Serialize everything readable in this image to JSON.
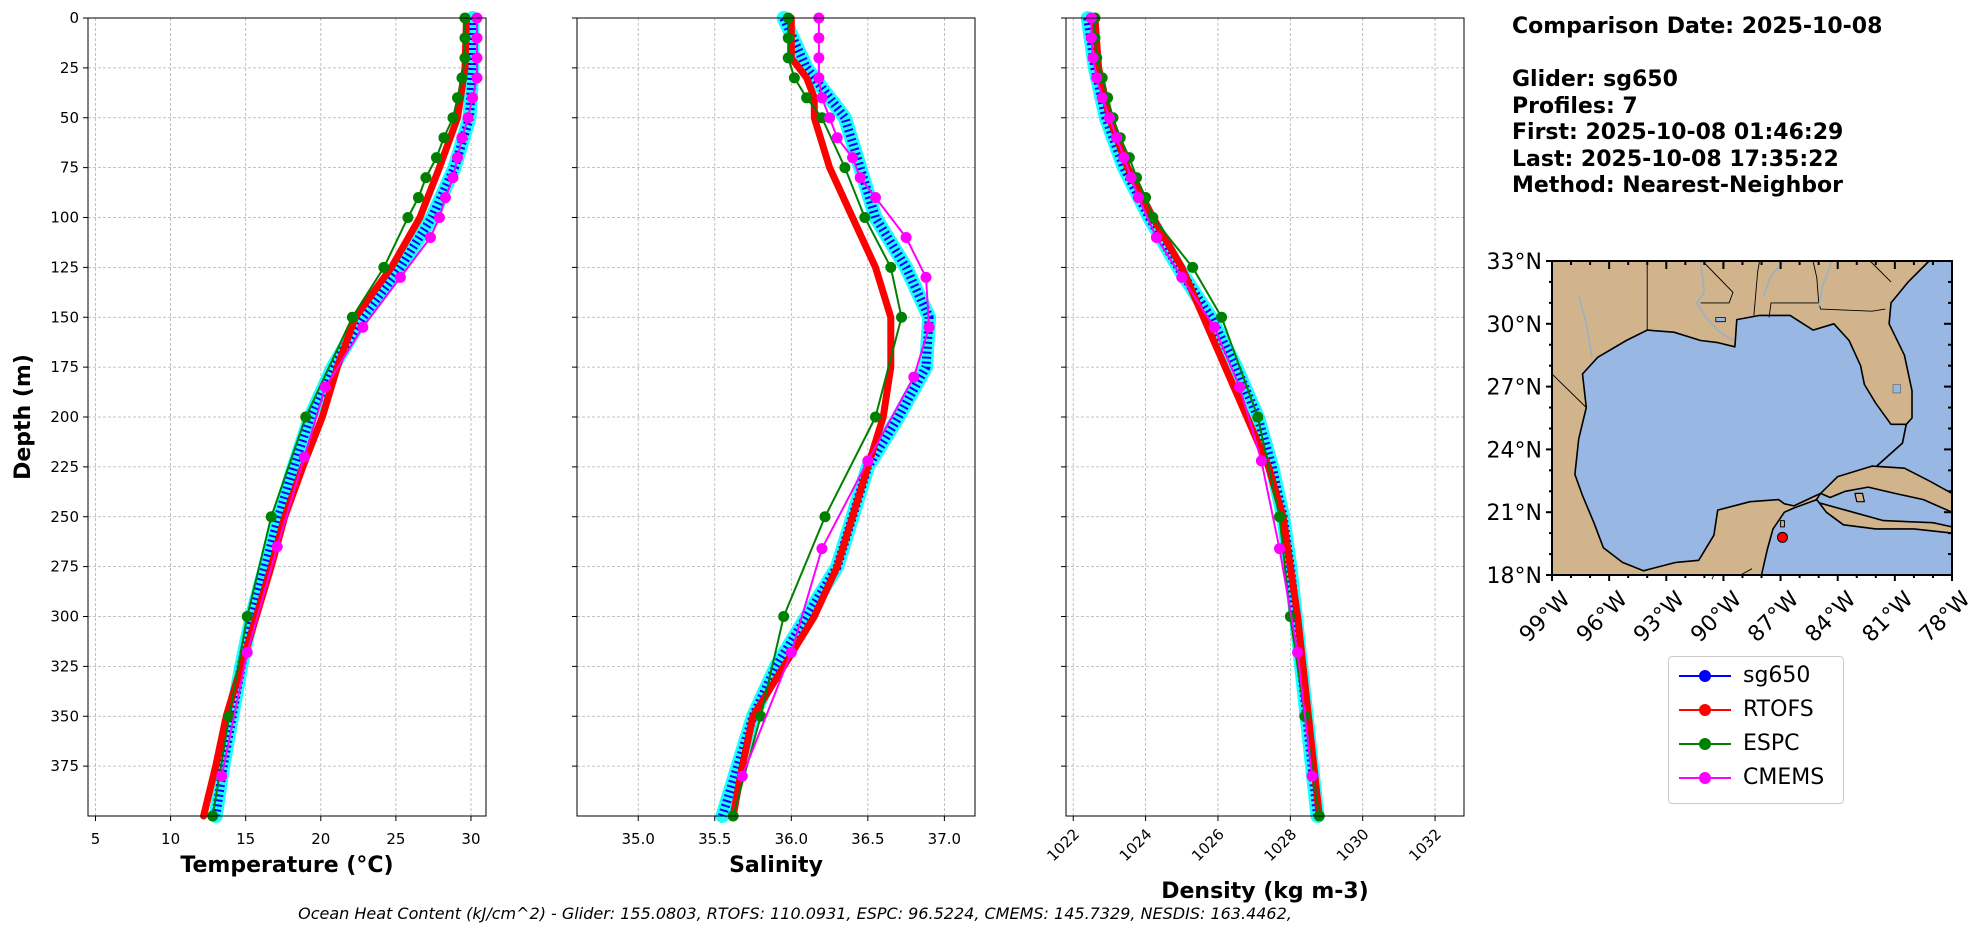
{
  "info": {
    "comparison_date": "Comparison Date: 2025-10-08",
    "glider": "Glider: sg650",
    "profiles": "Profiles: 7",
    "first": "First: 2025-10-08 01:46:29",
    "last": "Last: 2025-10-08 17:35:22",
    "method": "Method: Nearest-Neighbor"
  },
  "footer": "Ocean Heat Content (kJ/cm^2) - Glider: 155.0803,  RTOFS: 110.0931,  ESPC: 96.5224,  CMEMS: 145.7329,  NESDIS: 163.4462,",
  "legend": [
    {
      "name": "sg650",
      "color": "#0000ff"
    },
    {
      "name": "RTOFS",
      "color": "#ff0000"
    },
    {
      "name": "ESPC",
      "color": "#008000"
    },
    {
      "name": "CMEMS",
      "color": "#ff00ff"
    }
  ],
  "map": {
    "lat_ticks": [
      "18°N",
      "21°N",
      "24°N",
      "27°N",
      "30°N",
      "33°N"
    ],
    "lon_ticks": [
      "99°W",
      "96°W",
      "93°W",
      "90°W",
      "87°W",
      "84°W",
      "81°W",
      "78°W"
    ],
    "extent": {
      "lon": [
        -99,
        -78
      ],
      "lat": [
        18,
        33
      ]
    },
    "glider_position": {
      "lon": -86.9,
      "lat": 19.8
    },
    "land_color": "#d2b48c",
    "ocean_color": "#99b7e3"
  },
  "chart_data": [
    {
      "type": "line",
      "xlabel": "Temperature (°C)",
      "ylabel": "Depth (m)",
      "xlim": [
        4.5,
        31
      ],
      "ylim": [
        400,
        0
      ],
      "xticks": [
        5,
        10,
        15,
        20,
        25,
        30
      ],
      "yticks": [
        0,
        25,
        50,
        75,
        100,
        125,
        150,
        175,
        200,
        225,
        250,
        275,
        300,
        325,
        350,
        375
      ],
      "grid": true,
      "series": [
        {
          "name": "sg650",
          "color": "#0000ff",
          "depth": [
            0,
            25,
            50,
            75,
            100,
            125,
            150,
            175,
            200,
            225,
            250,
            275,
            300,
            325,
            350,
            375,
            400
          ],
          "values": [
            30.1,
            30.1,
            29.9,
            28.9,
            27.4,
            25.3,
            22.8,
            20.8,
            19.3,
            18.2,
            17.2,
            16.3,
            15.4,
            14.7,
            14.1,
            13.5,
            13.0
          ]
        },
        {
          "name": "RTOFS",
          "color": "#ff0000",
          "depth": [
            0,
            25,
            50,
            75,
            100,
            125,
            150,
            175,
            200,
            225,
            250,
            275,
            300,
            325,
            350,
            375,
            400
          ],
          "values": [
            29.7,
            29.6,
            29.1,
            27.9,
            26.6,
            24.7,
            22.3,
            21.1,
            20.1,
            18.8,
            17.6,
            16.7,
            15.7,
            14.7,
            13.7,
            13.0,
            12.2
          ]
        },
        {
          "name": "ESPC",
          "color": "#008000",
          "depth": [
            0,
            10,
            20,
            30,
            40,
            50,
            60,
            70,
            80,
            90,
            100,
            125,
            150,
            200,
            250,
            300,
            350,
            400
          ],
          "values": [
            29.6,
            29.6,
            29.6,
            29.4,
            29.1,
            28.8,
            28.2,
            27.7,
            27.0,
            26.5,
            25.8,
            24.2,
            22.1,
            19.0,
            16.7,
            15.1,
            13.9,
            12.8
          ]
        },
        {
          "name": "CMEMS",
          "color": "#ff00ff",
          "depth": [
            0,
            10,
            20,
            30,
            40,
            50,
            60,
            70,
            80,
            90,
            100,
            110,
            130,
            155,
            185,
            220,
            265,
            318,
            380
          ],
          "values": [
            30.4,
            30.4,
            30.4,
            30.4,
            30.1,
            29.8,
            29.4,
            29.1,
            28.8,
            28.3,
            27.9,
            27.3,
            25.3,
            22.8,
            20.3,
            18.9,
            17.1,
            15.1,
            13.4
          ]
        }
      ]
    },
    {
      "type": "line",
      "xlabel": "Salinity",
      "ylabel": "",
      "xlim": [
        34.6,
        37.2
      ],
      "ylim": [
        400,
        0
      ],
      "xticks": [
        35.0,
        35.5,
        36.0,
        36.5,
        37.0
      ],
      "grid": true,
      "series": [
        {
          "name": "sg650",
          "color": "#0000ff",
          "depth": [
            0,
            25,
            50,
            75,
            100,
            125,
            150,
            175,
            200,
            225,
            250,
            275,
            300,
            325,
            350,
            375,
            400
          ],
          "values": [
            35.95,
            36.1,
            36.35,
            36.45,
            36.55,
            36.75,
            36.9,
            36.88,
            36.7,
            36.5,
            36.4,
            36.3,
            36.1,
            35.9,
            35.75,
            35.65,
            35.55
          ]
        },
        {
          "name": "RTOFS",
          "color": "#ff0000",
          "depth": [
            0,
            10,
            20,
            30,
            40,
            50,
            75,
            100,
            125,
            150,
            175,
            200,
            225,
            250,
            275,
            300,
            325,
            350,
            375,
            400
          ],
          "values": [
            36.0,
            36.0,
            36.0,
            36.1,
            36.15,
            36.15,
            36.25,
            36.4,
            36.55,
            36.65,
            36.65,
            36.6,
            36.5,
            36.4,
            36.3,
            36.15,
            35.95,
            35.75,
            35.68,
            35.62
          ]
        },
        {
          "name": "ESPC",
          "color": "#008000",
          "depth": [
            0,
            10,
            20,
            30,
            40,
            50,
            75,
            100,
            125,
            150,
            200,
            250,
            300,
            350,
            400
          ],
          "values": [
            35.98,
            35.98,
            35.98,
            36.02,
            36.1,
            36.2,
            36.35,
            36.48,
            36.65,
            36.72,
            36.55,
            36.22,
            35.95,
            35.8,
            35.62
          ]
        },
        {
          "name": "CMEMS",
          "color": "#ff00ff",
          "depth": [
            0,
            10,
            20,
            30,
            40,
            50,
            60,
            70,
            80,
            90,
            110,
            130,
            155,
            180,
            222,
            266,
            318,
            380
          ],
          "values": [
            36.18,
            36.18,
            36.18,
            36.18,
            36.2,
            36.25,
            36.3,
            36.4,
            36.45,
            36.55,
            36.75,
            36.88,
            36.9,
            36.8,
            36.5,
            36.2,
            36.0,
            35.68
          ]
        }
      ]
    },
    {
      "type": "line",
      "xlabel": "Density (kg m-3)",
      "ylabel": "",
      "xlim": [
        1021.8,
        1032.8
      ],
      "ylim": [
        400,
        0
      ],
      "xticks": [
        1022,
        1024,
        1026,
        1028,
        1030,
        1032
      ],
      "grid": true,
      "series": [
        {
          "name": "sg650",
          "color": "#0000ff",
          "depth": [
            0,
            25,
            50,
            75,
            100,
            125,
            150,
            175,
            200,
            225,
            250,
            275,
            300,
            325,
            350,
            375,
            400
          ],
          "values": [
            1022.4,
            1022.6,
            1022.9,
            1023.4,
            1024.1,
            1024.9,
            1025.8,
            1026.5,
            1027.1,
            1027.5,
            1027.8,
            1028.0,
            1028.15,
            1028.3,
            1028.45,
            1028.6,
            1028.75
          ]
        },
        {
          "name": "RTOFS",
          "color": "#ff0000",
          "depth": [
            0,
            25,
            50,
            75,
            100,
            125,
            150,
            175,
            200,
            225,
            250,
            275,
            300,
            325,
            350,
            375,
            400
          ],
          "values": [
            1022.6,
            1022.7,
            1023.0,
            1023.5,
            1024.2,
            1025.0,
            1025.6,
            1026.2,
            1026.8,
            1027.4,
            1027.8,
            1028.0,
            1028.2,
            1028.35,
            1028.5,
            1028.65,
            1028.8
          ]
        },
        {
          "name": "ESPC",
          "color": "#008000",
          "depth": [
            0,
            10,
            20,
            30,
            40,
            50,
            60,
            70,
            80,
            90,
            100,
            125,
            150,
            200,
            250,
            300,
            350,
            400
          ],
          "values": [
            1022.6,
            1022.6,
            1022.65,
            1022.8,
            1022.95,
            1023.1,
            1023.3,
            1023.55,
            1023.75,
            1024.0,
            1024.2,
            1025.3,
            1026.1,
            1027.1,
            1027.7,
            1028.0,
            1028.4,
            1028.8
          ]
        },
        {
          "name": "CMEMS",
          "color": "#ff00ff",
          "depth": [
            0,
            10,
            20,
            30,
            40,
            50,
            60,
            70,
            80,
            90,
            110,
            130,
            155,
            185,
            222,
            266,
            318,
            380
          ],
          "values": [
            1022.5,
            1022.5,
            1022.55,
            1022.65,
            1022.8,
            1023.0,
            1023.2,
            1023.4,
            1023.6,
            1023.8,
            1024.3,
            1025.0,
            1025.9,
            1026.6,
            1027.2,
            1027.7,
            1028.2,
            1028.6
          ]
        }
      ]
    }
  ]
}
